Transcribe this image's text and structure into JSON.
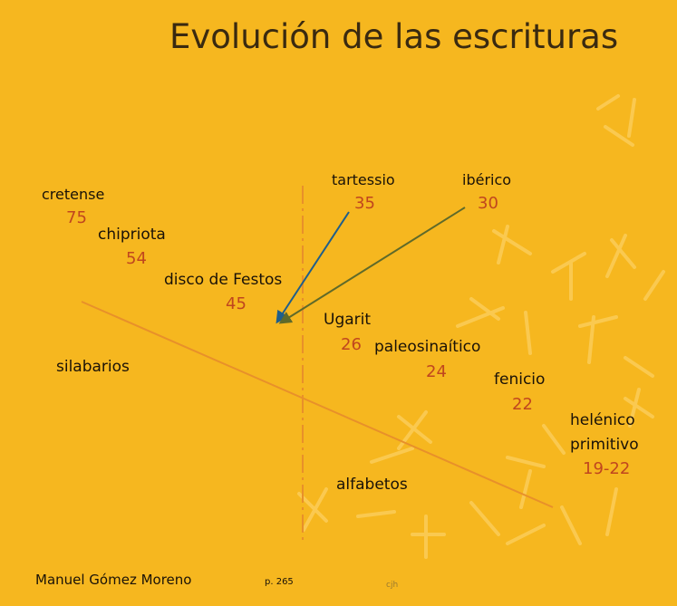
{
  "title": "Evolución de las escrituras",
  "scripts": [
    {
      "name": "cretense",
      "value": "75"
    },
    {
      "name": "chipriota",
      "value": "54"
    },
    {
      "name": "disco de Festos",
      "value": "45"
    },
    {
      "name": "tartessio",
      "value": "35"
    },
    {
      "name": "ibérico",
      "value": "30"
    },
    {
      "name": "Ugarit",
      "value": "26"
    },
    {
      "name": "paleosinaítico",
      "value": "24"
    },
    {
      "name": "fenicio",
      "value": "22"
    },
    {
      "name": "helénico",
      "name2": "primitivo",
      "value": "19-22"
    }
  ],
  "regions": {
    "left": "silabarios",
    "right": "alfabetos"
  },
  "credit": {
    "author": "Manuel Gómez Moreno",
    "page": "p. 265"
  },
  "watermark": "cjh",
  "colors": {
    "background": "#F6B71F",
    "number": "#C0461E",
    "divider_line": "#E8902A",
    "arrow_tartessio": "#1F5E8A",
    "arrow_iberico": "#5F6A2A"
  }
}
